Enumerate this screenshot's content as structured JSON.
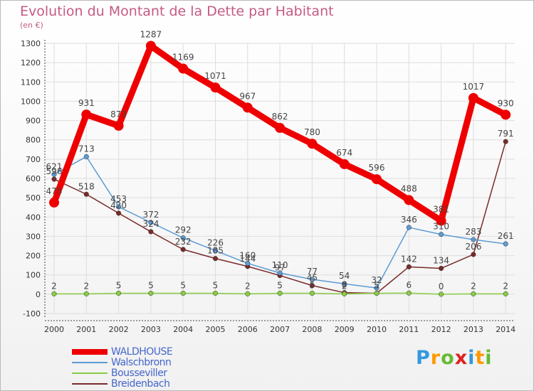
{
  "title": "Evolution du Montant de la Dette par Habitant",
  "subtitle": "(en €)",
  "logo_text": "Proxiti",
  "colors": {
    "title": "#c45a84",
    "axis_text": "#333333",
    "grid": "#dddddd",
    "legend_text": "#4466cc"
  },
  "chart_data": {
    "type": "line",
    "title": "Evolution du Montant de la Dette par Habitant",
    "subtitle": "(en €)",
    "x": [
      2000,
      2001,
      2002,
      2003,
      2004,
      2005,
      2006,
      2007,
      2008,
      2009,
      2010,
      2011,
      2012,
      2013,
      2014
    ],
    "ylim": [
      -100,
      1300
    ],
    "yticks": [
      -100,
      0,
      100,
      200,
      300,
      400,
      500,
      600,
      700,
      800,
      900,
      1000,
      1100,
      1200,
      1300
    ],
    "grid": true,
    "legend_position": "bottom-left",
    "series": [
      {
        "name": "WALDHOUSE",
        "color": "#ee0000",
        "values": [
          475,
          931,
          873,
          1287,
          1169,
          1071,
          967,
          862,
          780,
          674,
          596,
          488,
          381,
          1017,
          930
        ],
        "labels": [
          "475",
          "931",
          "873",
          "1287",
          "1169",
          "1071",
          "967",
          "862",
          "780",
          "674",
          "596",
          "488",
          "381",
          "1017",
          "930"
        ]
      },
      {
        "name": "Walschbronn",
        "color": "#5b9bd5",
        "values": [
          621,
          713,
          453,
          372,
          292,
          226,
          160,
          110,
          77,
          54,
          32,
          346,
          310,
          283,
          261
        ],
        "labels": [
          "621",
          "713",
          "453",
          "372",
          "292",
          "226",
          "160",
          "110",
          "77",
          "54",
          "32",
          "346",
          "310",
          "283",
          "261"
        ]
      },
      {
        "name": "Bousseviller",
        "color": "#88cc44",
        "values": [
          2,
          2,
          5,
          5,
          5,
          5,
          2,
          5,
          5,
          2,
          5,
          6,
          0,
          2,
          2
        ],
        "labels": [
          "2",
          "2",
          "5",
          "5",
          "5",
          "5",
          "2",
          "5",
          "5",
          "2",
          "5",
          "6",
          "0",
          "2",
          "2"
        ]
      },
      {
        "name": "Breidenbach",
        "color": "#7a2a2a",
        "values": [
          596,
          518,
          420,
          324,
          232,
          185,
          144,
          97,
          45,
          8,
          5,
          142,
          134,
          206,
          791
        ],
        "labels": [
          "596",
          "518",
          "420",
          "324",
          "232",
          "185",
          "144",
          "97",
          "45",
          "8",
          "5",
          "142",
          "134",
          "206",
          "791"
        ]
      }
    ]
  }
}
